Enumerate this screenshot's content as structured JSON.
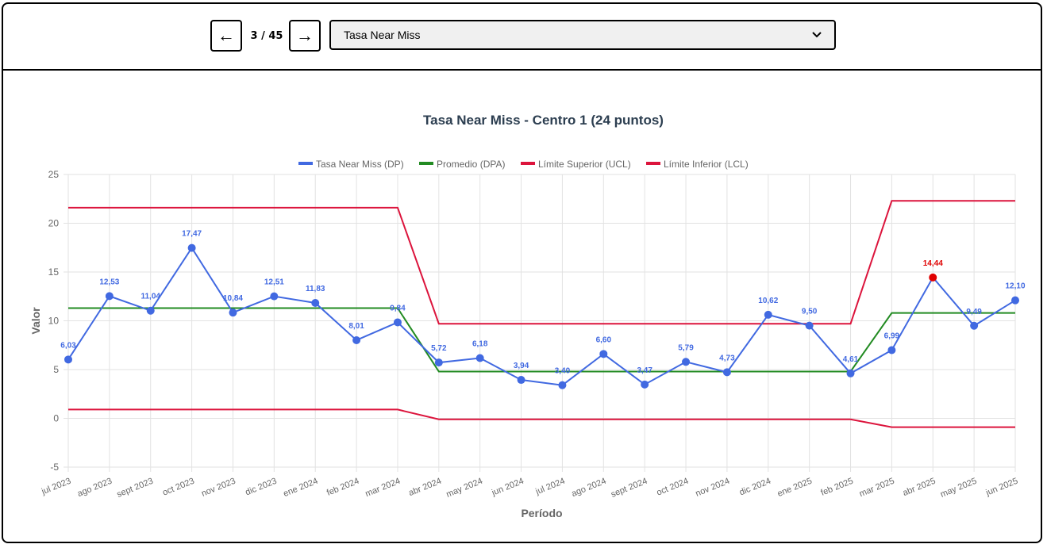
{
  "nav": {
    "prev_label": "←",
    "next_label": "→",
    "counter": "3 / 45",
    "selected_metric": "Tasa Near Miss"
  },
  "chart_data": {
    "type": "line",
    "title": "Tasa Near Miss - Centro 1 (24 puntos)",
    "xlabel": "Período",
    "ylabel": "Valor",
    "ylim": [
      -5,
      25
    ],
    "yticks": [
      -5,
      0,
      5,
      10,
      15,
      20,
      25
    ],
    "grid": true,
    "legend_position": "top-center",
    "categories": [
      "jul 2023",
      "ago 2023",
      "sept 2023",
      "oct 2023",
      "nov 2023",
      "dic 2023",
      "ene 2024",
      "feb 2024",
      "mar 2024",
      "abr 2024",
      "may 2024",
      "jun 2024",
      "jul 2024",
      "ago 2024",
      "sept 2024",
      "oct 2024",
      "nov 2024",
      "dic 2024",
      "ene 2025",
      "feb 2025",
      "mar 2025",
      "abr 2025",
      "may 2025",
      "jun 2025"
    ],
    "series": [
      {
        "name": "Tasa Near Miss (DP)",
        "color": "#4169e1",
        "values": [
          6.03,
          12.53,
          11.04,
          17.47,
          10.84,
          12.51,
          11.83,
          8.01,
          9.84,
          5.72,
          6.18,
          3.94,
          3.4,
          6.6,
          3.47,
          5.79,
          4.73,
          10.62,
          9.5,
          4.61,
          6.99,
          14.44,
          9.49,
          12.1
        ],
        "labels": [
          "6,03",
          "12,53",
          "11,04",
          "17,47",
          "10,84",
          "12,51",
          "11,83",
          "8,01",
          "9,84",
          "5,72",
          "6,18",
          "3,94",
          "3,40",
          "6,60",
          "3,47",
          "5,79",
          "4,73",
          "10,62",
          "9,50",
          "4,61",
          "6,99",
          "14,44",
          "9,49",
          "12,10"
        ],
        "highlight_index": 21,
        "highlight_color": "#e00000"
      },
      {
        "name": "Promedio (DPA)",
        "color": "#228b22",
        "values": [
          11.3,
          11.3,
          11.3,
          11.3,
          11.3,
          11.3,
          11.3,
          11.3,
          11.3,
          4.8,
          4.8,
          4.8,
          4.8,
          4.8,
          4.8,
          4.8,
          4.8,
          4.8,
          4.8,
          4.8,
          10.8,
          10.8,
          10.8,
          10.8
        ]
      },
      {
        "name": "Límite Superior (UCL)",
        "color": "#dc143c",
        "values": [
          21.6,
          21.6,
          21.6,
          21.6,
          21.6,
          21.6,
          21.6,
          21.6,
          21.6,
          9.7,
          9.7,
          9.7,
          9.7,
          9.7,
          9.7,
          9.7,
          9.7,
          9.7,
          9.7,
          9.7,
          22.3,
          22.3,
          22.3,
          22.3
        ]
      },
      {
        "name": "Límite Inferior (LCL)",
        "color": "#dc143c",
        "values": [
          0.9,
          0.9,
          0.9,
          0.9,
          0.9,
          0.9,
          0.9,
          0.9,
          0.9,
          -0.1,
          -0.1,
          -0.1,
          -0.1,
          -0.1,
          -0.1,
          -0.1,
          -0.1,
          -0.1,
          -0.1,
          -0.1,
          -0.9,
          -0.9,
          -0.9,
          -0.9
        ]
      }
    ]
  }
}
